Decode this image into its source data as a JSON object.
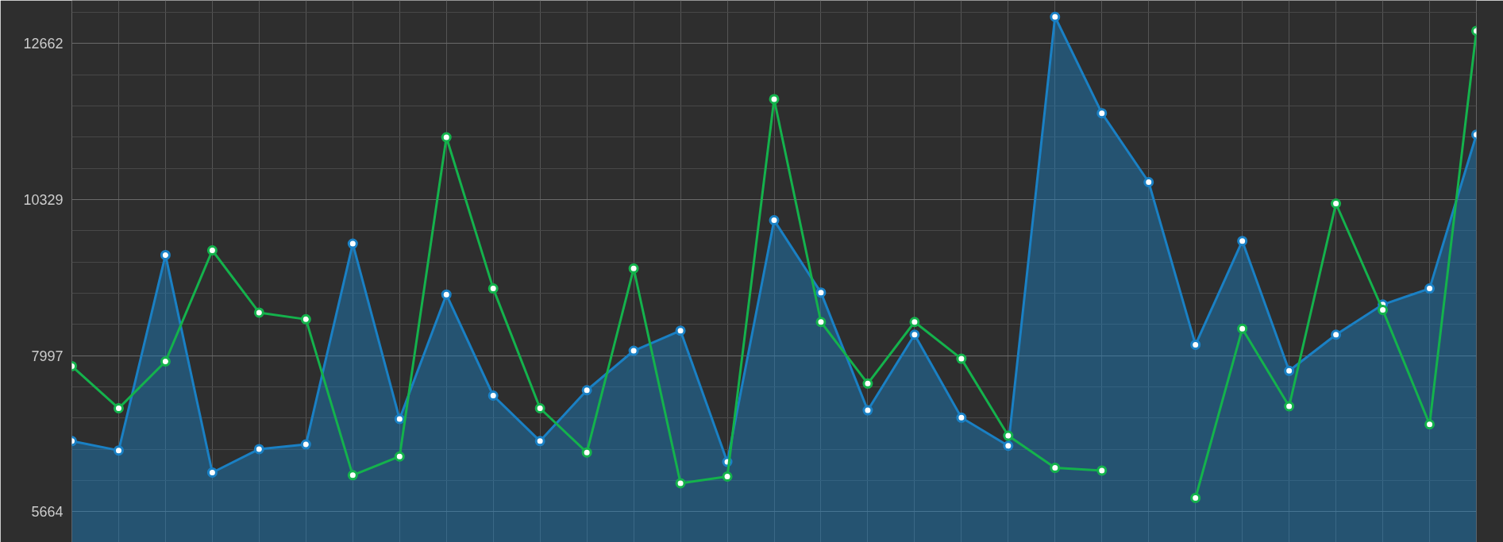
{
  "chart_data": {
    "type": "line",
    "categories": [
      null,
      null,
      null,
      null,
      null,
      null,
      null,
      null,
      null,
      null,
      null,
      null,
      null,
      null,
      null,
      null,
      null,
      null,
      null,
      null,
      null,
      null,
      null,
      null,
      null,
      null,
      null,
      null,
      null,
      null,
      null
    ],
    "series": [
      {
        "type": "area",
        "color": "#1a80c4",
        "values": [
          6720,
          6580,
          9500,
          6250,
          6600,
          6670,
          9670,
          7050,
          8910,
          7400,
          6720,
          7480,
          8070,
          8370,
          6410,
          10020,
          8940,
          7180,
          8310,
          7070,
          6650,
          13060,
          11620,
          10590,
          8160,
          9710,
          7770,
          8310,
          8760,
          9000,
          11300
        ]
      },
      {
        "color": "#14b24c",
        "values": [
          7840,
          7210,
          7910,
          9570,
          8640,
          8540,
          6210,
          6490,
          11260,
          9000,
          7210,
          6550,
          9300,
          6090,
          6190,
          11830,
          8500,
          7580,
          8500,
          7950,
          6800,
          6320,
          6280,
          null,
          5870,
          8400,
          7240,
          10270,
          8680,
          6970,
          12850
        ]
      }
    ],
    "ylim": [
      5206,
      13306
    ],
    "yticks": [
      5664,
      7997,
      10329,
      12662
    ],
    "grid": true,
    "marker": "circle",
    "line_style": "solid",
    "tick_labels": "y"
  }
}
